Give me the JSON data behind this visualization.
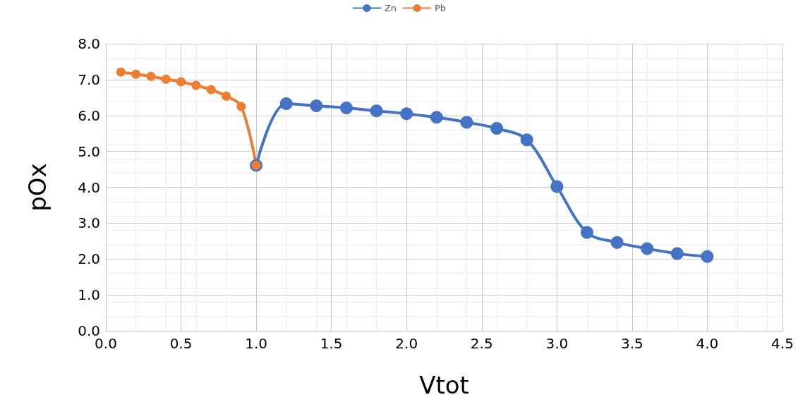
{
  "chart_data": {
    "type": "line",
    "xlabel": "Vtot",
    "ylabel": "pOx",
    "series": [
      {
        "name": "Zn",
        "color": "#4472c4",
        "x": [
          1.0,
          1.2,
          1.4,
          1.6,
          1.8,
          2.0,
          2.2,
          2.4,
          2.6,
          2.8,
          3.0,
          3.2,
          3.4,
          3.6,
          3.8,
          4.0
        ],
        "values": [
          4.61,
          6.33,
          6.27,
          6.21,
          6.13,
          6.05,
          5.95,
          5.81,
          5.64,
          5.32,
          4.02,
          2.74,
          2.46,
          2.29,
          2.15,
          2.07
        ]
      },
      {
        "name": "Pb",
        "color": "#ed7d31",
        "x": [
          0.1,
          0.2,
          0.3,
          0.4,
          0.5,
          0.6,
          0.7,
          0.8,
          0.9,
          1.0
        ],
        "values": [
          7.21,
          7.15,
          7.09,
          7.01,
          6.94,
          6.84,
          6.72,
          6.54,
          6.25,
          4.61
        ]
      }
    ],
    "xlim": [
      0,
      4.5
    ],
    "xticks": [
      {
        "value": 0,
        "label": "0.0"
      },
      0.5,
      {
        "value": 1,
        "label": "1.0"
      },
      1.5,
      {
        "value": 2,
        "label": "2.0"
      },
      2.5,
      {
        "value": 3,
        "label": "3.0"
      },
      3.5,
      {
        "value": 4,
        "label": "4.0"
      },
      4.5
    ],
    "ylim": [
      0,
      8
    ],
    "yticks": [
      {
        "value": 0,
        "label": "0.0"
      },
      {
        "value": 1,
        "label": "1.0"
      },
      {
        "value": 2,
        "label": "2.0"
      },
      {
        "value": 3,
        "label": "3.0"
      },
      {
        "value": 4,
        "label": "4.0"
      },
      {
        "value": 5,
        "label": "5.0"
      },
      {
        "value": 6,
        "label": "6.0"
      },
      {
        "value": 7,
        "label": "7.0"
      },
      {
        "value": 8,
        "label": "8.0"
      }
    ],
    "grid": true,
    "legend": "top",
    "marker": "circle",
    "line_style": "solid"
  }
}
